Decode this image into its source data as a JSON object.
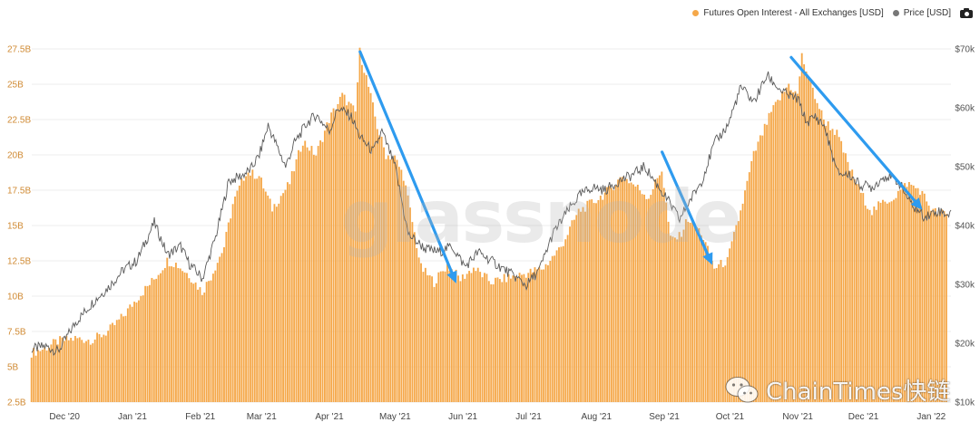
{
  "legend": {
    "series1_label": "Futures Open Interest - All Exchanges [USD]",
    "series2_label": "Price [USD]",
    "camera_icon": "camera-icon"
  },
  "watermark": "glassnode",
  "brand_watermark": "ChainTimes快链",
  "colors": {
    "bars": "#F5A84A",
    "bar_edge": "#ffffff",
    "price_line": "#5a5a5a",
    "arrows": "#2E9BEF",
    "left_axis_text": "#D08A33",
    "right_axis_text": "#555555",
    "grid": "#ececec"
  },
  "chart_data": {
    "type": "bar",
    "left_axis": {
      "ylim": [
        2.5,
        27.5
      ],
      "ticks": [
        "2.5B",
        "5B",
        "7.5B",
        "10B",
        "12.5B",
        "15B",
        "17.5B",
        "20B",
        "22.5B",
        "25B",
        "27.5B"
      ],
      "tick_values": [
        2.5,
        5,
        7.5,
        10,
        12.5,
        15,
        17.5,
        20,
        22.5,
        25,
        27.5
      ]
    },
    "right_axis": {
      "ylim": [
        10000,
        70000
      ],
      "ticks": [
        "$10k",
        "$20k",
        "$30k",
        "$40k",
        "$50k",
        "$60k",
        "$70k"
      ],
      "tick_values": [
        10000,
        20000,
        30000,
        40000,
        50000,
        60000,
        70000
      ]
    },
    "x_labels": [
      "Dec '20",
      "Jan '21",
      "Feb '21",
      "Mar '21",
      "Apr '21",
      "May '21",
      "Jun '21",
      "Jul '21",
      "Aug '21",
      "Sep '21",
      "Oct '21",
      "Nov '21",
      "Dec '21",
      "Jan '22"
    ],
    "x_label_days": [
      15,
      46,
      77,
      105,
      136,
      166,
      197,
      227,
      258,
      289,
      319,
      350,
      380,
      411
    ],
    "x_range_days": [
      0,
      420
    ],
    "series": [
      {
        "name": "Futures Open Interest - All Exchanges [USD]",
        "unit": "B USD",
        "keyframes_day": [
          0,
          6,
          12,
          20,
          28,
          35,
          42,
          48,
          56,
          62,
          66,
          72,
          78,
          82,
          88,
          92,
          98,
          104,
          110,
          118,
          124,
          130,
          136,
          142,
          148,
          150,
          153,
          158,
          162,
          166,
          170,
          178,
          184,
          190,
          196,
          202,
          210,
          218,
          226,
          234,
          242,
          250,
          258,
          264,
          270,
          276,
          282,
          288,
          292,
          296,
          300,
          306,
          312,
          318,
          324,
          330,
          338,
          346,
          350,
          352,
          356,
          362,
          368,
          374,
          380,
          384,
          388,
          394,
          400,
          406,
          412,
          418
        ],
        "keyframes_value": [
          6.0,
          6.3,
          6.8,
          7.0,
          6.9,
          7.5,
          8.6,
          9.8,
          11.2,
          12.5,
          12.3,
          11.5,
          10.3,
          11.4,
          13.5,
          16.5,
          18.8,
          18.5,
          16.2,
          18.0,
          21.0,
          20.0,
          22.5,
          24.2,
          23.0,
          27.3,
          25.5,
          22.0,
          20.0,
          19.8,
          18.5,
          12.0,
          11.0,
          12.2,
          11.2,
          12.0,
          11.0,
          11.3,
          11.6,
          12.0,
          13.5,
          16.0,
          16.8,
          17.5,
          18.5,
          17.8,
          17.0,
          19.0,
          14.0,
          14.2,
          15.5,
          14.5,
          12.0,
          12.5,
          16.0,
          20.0,
          23.0,
          25.0,
          24.2,
          27.0,
          25.0,
          22.5,
          21.5,
          19.0,
          17.0,
          16.0,
          16.5,
          17.0,
          18.0,
          17.5,
          16.0,
          15.8
        ]
      },
      {
        "name": "Price [USD]",
        "unit": "USD",
        "keyframes_day": [
          0,
          6,
          12,
          20,
          28,
          35,
          42,
          48,
          56,
          62,
          68,
          72,
          78,
          84,
          90,
          96,
          100,
          104,
          108,
          112,
          116,
          120,
          126,
          130,
          136,
          140,
          146,
          150,
          156,
          160,
          166,
          172,
          180,
          186,
          192,
          198,
          204,
          210,
          216,
          222,
          226,
          232,
          238,
          244,
          250,
          256,
          262,
          268,
          274,
          280,
          286,
          292,
          296,
          300,
          306,
          312,
          318,
          324,
          330,
          336,
          342,
          346,
          350,
          354,
          358,
          362,
          368,
          374,
          378,
          384,
          390,
          396,
          402,
          408,
          414,
          420
        ],
        "keyframes_value": [
          19000,
          19500,
          18600,
          23500,
          27000,
          29500,
          32500,
          34000,
          40500,
          35000,
          36500,
          33500,
          31000,
          38000,
          47500,
          48500,
          49500,
          52000,
          57000,
          53500,
          50000,
          54000,
          57500,
          58800,
          56000,
          60000,
          58500,
          55000,
          52500,
          56000,
          50000,
          38500,
          36000,
          35500,
          36500,
          33000,
          35500,
          34000,
          32500,
          31000,
          29800,
          32500,
          38500,
          42000,
          45000,
          46500,
          46000,
          47500,
          48500,
          50000,
          46800,
          43500,
          41000,
          43800,
          47500,
          54000,
          57000,
          63500,
          61000,
          65500,
          63000,
          62000,
          61500,
          57500,
          58500,
          57000,
          49000,
          48500,
          47000,
          46500,
          48500,
          47500,
          43500,
          41500,
          42500,
          41800
        ]
      }
    ],
    "annotations": [
      {
        "type": "arrow",
        "from_day": 150,
        "from_value_b": 27.3,
        "to_day": 194,
        "to_value_b": 10.9
      },
      {
        "type": "arrow",
        "from_day": 288,
        "from_value_b": 20.2,
        "to_day": 311,
        "to_value_b": 12.2
      },
      {
        "type": "arrow",
        "from_day": 347,
        "from_value_b": 26.9,
        "to_day": 407,
        "to_value_b": 16.1
      }
    ]
  }
}
